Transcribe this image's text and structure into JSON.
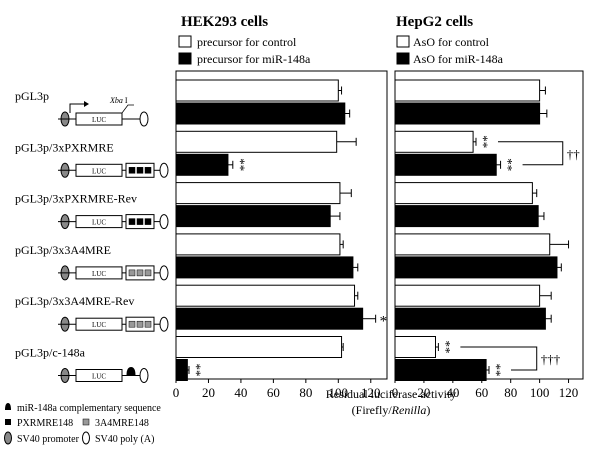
{
  "chart_data": [
    {
      "type": "bar",
      "orientation": "horizontal",
      "title": "HEK293 cells",
      "categories": [
        "pGL3p",
        "pGL3p/3xPXRMRE",
        "pGL3p/3xPXRMRE-Rev",
        "pGL3p/3x3A4MRE",
        "pGL3p/3x3A4MRE-Rev",
        "pGL3p/c-148a"
      ],
      "series": [
        {
          "name": "precursor for control",
          "color": "#ffffff",
          "values": [
            100,
            99,
            101,
            101,
            110,
            102
          ],
          "errors": [
            2,
            12,
            7,
            2,
            2,
            1
          ]
        },
        {
          "name": "precursor for miR-148a",
          "color": "#000000",
          "values": [
            104,
            32,
            95,
            109,
            115,
            7
          ],
          "errors": [
            3,
            3,
            6,
            3,
            8,
            1
          ]
        }
      ],
      "marks": [
        {
          "category": "pGL3p/3xPXRMRE",
          "series": 1,
          "text": "**"
        },
        {
          "category": "pGL3p/3x3A4MRE-Rev",
          "series": 1,
          "text": "*"
        },
        {
          "category": "pGL3p/c-148a",
          "series": 1,
          "text": "**"
        }
      ],
      "brackets": [],
      "xlim": [
        0,
        130
      ],
      "xticks": [
        0,
        20,
        40,
        60,
        80,
        100,
        120
      ],
      "xlabel": "Residual luciferase activity",
      "legend_position": "top"
    },
    {
      "type": "bar",
      "orientation": "horizontal",
      "title": "HepG2 cells",
      "categories": [
        "pGL3p",
        "pGL3p/3xPXRMRE",
        "pGL3p/3xPXRMRE-Rev",
        "pGL3p/3x3A4MRE",
        "pGL3p/3x3A4MRE-Rev",
        "pGL3p/c-148a"
      ],
      "series": [
        {
          "name": "AsO for control",
          "color": "#ffffff",
          "values": [
            100,
            54,
            95,
            107,
            100,
            28
          ],
          "errors": [
            4,
            2,
            3,
            13,
            8,
            2
          ]
        },
        {
          "name": "AsO for miR-148a",
          "color": "#000000",
          "values": [
            100,
            70,
            99,
            112,
            104,
            63
          ],
          "errors": [
            5,
            3,
            4,
            3,
            4,
            2
          ]
        }
      ],
      "marks": [
        {
          "category": "pGL3p/3xPXRMRE",
          "series": 0,
          "text": "**"
        },
        {
          "category": "pGL3p/3xPXRMRE",
          "series": 1,
          "text": "**"
        },
        {
          "category": "pGL3p/c-148a",
          "series": 0,
          "text": "**"
        },
        {
          "category": "pGL3p/c-148a",
          "series": 1,
          "text": "**"
        }
      ],
      "brackets": [
        {
          "category": "pGL3p/3xPXRMRE",
          "text": "††"
        },
        {
          "category": "pGL3p/c-148a",
          "text": "†††"
        }
      ],
      "xlim": [
        0,
        130
      ],
      "xticks": [
        0,
        20,
        40,
        60,
        80,
        100,
        120
      ],
      "xlabel": "Residual luciferase activity",
      "legend_position": "top"
    }
  ],
  "xlabel_line1": "Residual luciferase activity",
  "xlabel_line2_prefix": "(Firefly/",
  "xlabel_line2_italic": "Renilla",
  "xlabel_line2_suffix": ")",
  "constructs": [
    {
      "label": "pGL3p",
      "elements": "none"
    },
    {
      "label": "pGL3p/3xPXRMRE",
      "elements": "pxr"
    },
    {
      "label": "pGL3p/3xPXRMRE-Rev",
      "elements": "pxr"
    },
    {
      "label": "pGL3p/3x3A4MRE",
      "elements": "a4"
    },
    {
      "label": "pGL3p/3x3A4MRE-Rev",
      "elements": "a4"
    },
    {
      "label": "pGL3p/c-148a",
      "elements": "comp"
    }
  ],
  "diagram_labels": {
    "luc": "LUC",
    "xba": "Xba",
    "xba_suffix": " I"
  },
  "key": [
    {
      "icon": "complementary",
      "label": "miR-148a complementary sequence"
    },
    {
      "icon": "pxr",
      "label": "PXRMRE148"
    },
    {
      "icon": "a4",
      "label": "3A4MRE148"
    },
    {
      "icon": "promoter",
      "label": "SV40 promoter"
    },
    {
      "icon": "polya",
      "label": "SV40 poly (A)"
    }
  ]
}
